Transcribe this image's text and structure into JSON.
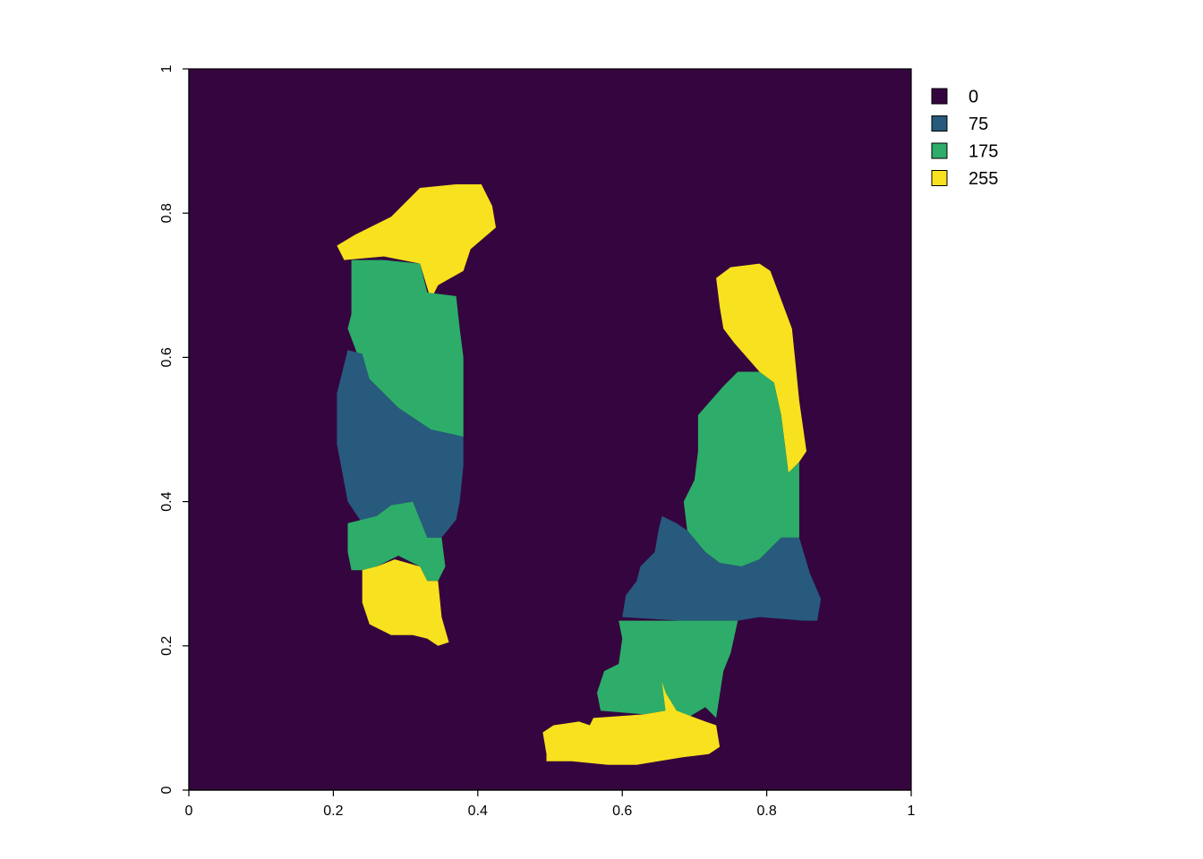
{
  "chart_data": {
    "type": "heatmap",
    "title": "",
    "xlabel": "",
    "ylabel": "",
    "xlim": [
      0,
      1
    ],
    "ylim": [
      0,
      1
    ],
    "x_ticks": [
      0,
      0.2,
      0.4,
      0.6,
      0.8,
      1
    ],
    "x_tick_labels": [
      "0",
      "0.2",
      "0.4",
      "0.6",
      "0.8",
      "1"
    ],
    "y_ticks": [
      0,
      0.2,
      0.4,
      0.6,
      0.8,
      1
    ],
    "y_tick_labels": [
      "0",
      "0.2",
      "0.4",
      "0.6",
      "0.8",
      "1"
    ],
    "background_value": 0,
    "legend": [
      {
        "label": "0",
        "value": 0,
        "color": "#35053F"
      },
      {
        "label": "75",
        "value": 75,
        "color": "#275A7D"
      },
      {
        "label": "175",
        "value": 175,
        "color": "#2DAD69"
      },
      {
        "label": "255",
        "value": 255,
        "color": "#F8E11E"
      }
    ],
    "regions": [
      {
        "name": "left-top-yellow",
        "value": 255,
        "points": [
          [
            0.205,
            0.755
          ],
          [
            0.23,
            0.77
          ],
          [
            0.28,
            0.795
          ],
          [
            0.32,
            0.835
          ],
          [
            0.37,
            0.84
          ],
          [
            0.405,
            0.84
          ],
          [
            0.42,
            0.81
          ],
          [
            0.425,
            0.78
          ],
          [
            0.39,
            0.75
          ],
          [
            0.38,
            0.72
          ],
          [
            0.345,
            0.7
          ],
          [
            0.335,
            0.68
          ],
          [
            0.32,
            0.73
          ],
          [
            0.27,
            0.74
          ],
          [
            0.215,
            0.735
          ]
        ]
      },
      {
        "name": "left-upper-green",
        "value": 175,
        "points": [
          [
            0.225,
            0.735
          ],
          [
            0.27,
            0.735
          ],
          [
            0.32,
            0.73
          ],
          [
            0.33,
            0.69
          ],
          [
            0.37,
            0.685
          ],
          [
            0.375,
            0.64
          ],
          [
            0.38,
            0.6
          ],
          [
            0.38,
            0.49
          ],
          [
            0.335,
            0.5
          ],
          [
            0.29,
            0.53
          ],
          [
            0.25,
            0.57
          ],
          [
            0.235,
            0.6
          ],
          [
            0.22,
            0.64
          ],
          [
            0.225,
            0.66
          ]
        ]
      },
      {
        "name": "left-blue",
        "value": 75,
        "points": [
          [
            0.22,
            0.61
          ],
          [
            0.24,
            0.605
          ],
          [
            0.25,
            0.57
          ],
          [
            0.29,
            0.53
          ],
          [
            0.335,
            0.5
          ],
          [
            0.38,
            0.49
          ],
          [
            0.38,
            0.45
          ],
          [
            0.375,
            0.4
          ],
          [
            0.37,
            0.375
          ],
          [
            0.35,
            0.35
          ],
          [
            0.33,
            0.35
          ],
          [
            0.31,
            0.4
          ],
          [
            0.28,
            0.395
          ],
          [
            0.26,
            0.38
          ],
          [
            0.24,
            0.37
          ],
          [
            0.22,
            0.4
          ],
          [
            0.205,
            0.48
          ],
          [
            0.205,
            0.55
          ]
        ]
      },
      {
        "name": "left-lower-green",
        "value": 175,
        "points": [
          [
            0.22,
            0.37
          ],
          [
            0.26,
            0.38
          ],
          [
            0.28,
            0.395
          ],
          [
            0.31,
            0.4
          ],
          [
            0.33,
            0.35
          ],
          [
            0.35,
            0.35
          ],
          [
            0.355,
            0.31
          ],
          [
            0.345,
            0.29
          ],
          [
            0.33,
            0.29
          ],
          [
            0.32,
            0.31
          ],
          [
            0.29,
            0.325
          ],
          [
            0.26,
            0.31
          ],
          [
            0.245,
            0.305
          ],
          [
            0.225,
            0.305
          ],
          [
            0.22,
            0.33
          ]
        ]
      },
      {
        "name": "left-bottom-yellow",
        "value": 255,
        "points": [
          [
            0.24,
            0.305
          ],
          [
            0.26,
            0.31
          ],
          [
            0.285,
            0.32
          ],
          [
            0.32,
            0.31
          ],
          [
            0.33,
            0.29
          ],
          [
            0.345,
            0.29
          ],
          [
            0.35,
            0.24
          ],
          [
            0.36,
            0.205
          ],
          [
            0.345,
            0.2
          ],
          [
            0.33,
            0.21
          ],
          [
            0.31,
            0.215
          ],
          [
            0.28,
            0.215
          ],
          [
            0.25,
            0.23
          ],
          [
            0.24,
            0.26
          ]
        ]
      },
      {
        "name": "right-top-yellow",
        "value": 255,
        "points": [
          [
            0.73,
            0.71
          ],
          [
            0.75,
            0.725
          ],
          [
            0.79,
            0.73
          ],
          [
            0.805,
            0.72
          ],
          [
            0.82,
            0.68
          ],
          [
            0.835,
            0.64
          ],
          [
            0.84,
            0.59
          ],
          [
            0.845,
            0.54
          ],
          [
            0.855,
            0.47
          ],
          [
            0.845,
            0.455
          ],
          [
            0.83,
            0.44
          ],
          [
            0.825,
            0.48
          ],
          [
            0.82,
            0.52
          ],
          [
            0.81,
            0.565
          ],
          [
            0.79,
            0.58
          ],
          [
            0.755,
            0.62
          ],
          [
            0.74,
            0.64
          ],
          [
            0.735,
            0.67
          ]
        ]
      },
      {
        "name": "right-upper-green",
        "value": 175,
        "points": [
          [
            0.705,
            0.52
          ],
          [
            0.74,
            0.56
          ],
          [
            0.76,
            0.58
          ],
          [
            0.79,
            0.58
          ],
          [
            0.81,
            0.565
          ],
          [
            0.82,
            0.52
          ],
          [
            0.825,
            0.48
          ],
          [
            0.83,
            0.44
          ],
          [
            0.845,
            0.455
          ],
          [
            0.845,
            0.35
          ],
          [
            0.82,
            0.35
          ],
          [
            0.79,
            0.32
          ],
          [
            0.765,
            0.31
          ],
          [
            0.735,
            0.315
          ],
          [
            0.715,
            0.33
          ],
          [
            0.69,
            0.36
          ],
          [
            0.685,
            0.4
          ],
          [
            0.7,
            0.43
          ],
          [
            0.705,
            0.47
          ]
        ]
      },
      {
        "name": "right-blue",
        "value": 75,
        "points": [
          [
            0.655,
            0.38
          ],
          [
            0.675,
            0.37
          ],
          [
            0.69,
            0.36
          ],
          [
            0.715,
            0.33
          ],
          [
            0.735,
            0.315
          ],
          [
            0.765,
            0.31
          ],
          [
            0.79,
            0.32
          ],
          [
            0.82,
            0.35
          ],
          [
            0.845,
            0.35
          ],
          [
            0.86,
            0.3
          ],
          [
            0.875,
            0.265
          ],
          [
            0.87,
            0.235
          ],
          [
            0.85,
            0.235
          ],
          [
            0.79,
            0.24
          ],
          [
            0.76,
            0.235
          ],
          [
            0.72,
            0.235
          ],
          [
            0.68,
            0.235
          ],
          [
            0.6,
            0.24
          ],
          [
            0.605,
            0.27
          ],
          [
            0.62,
            0.29
          ],
          [
            0.625,
            0.31
          ],
          [
            0.645,
            0.33
          ],
          [
            0.65,
            0.36
          ]
        ]
      },
      {
        "name": "right-lower-green",
        "value": 175,
        "points": [
          [
            0.595,
            0.235
          ],
          [
            0.64,
            0.235
          ],
          [
            0.7,
            0.235
          ],
          [
            0.75,
            0.235
          ],
          [
            0.76,
            0.235
          ],
          [
            0.75,
            0.19
          ],
          [
            0.74,
            0.165
          ],
          [
            0.73,
            0.1
          ],
          [
            0.715,
            0.115
          ],
          [
            0.69,
            0.1
          ],
          [
            0.66,
            0.11
          ],
          [
            0.63,
            0.105
          ],
          [
            0.57,
            0.11
          ],
          [
            0.565,
            0.135
          ],
          [
            0.575,
            0.165
          ],
          [
            0.595,
            0.175
          ],
          [
            0.6,
            0.21
          ]
        ]
      },
      {
        "name": "right-bottom-yellow",
        "value": 255,
        "points": [
          [
            0.495,
            0.05
          ],
          [
            0.49,
            0.08
          ],
          [
            0.505,
            0.09
          ],
          [
            0.54,
            0.095
          ],
          [
            0.555,
            0.09
          ],
          [
            0.56,
            0.1
          ],
          [
            0.63,
            0.105
          ],
          [
            0.66,
            0.11
          ],
          [
            0.655,
            0.15
          ],
          [
            0.66,
            0.135
          ],
          [
            0.675,
            0.11
          ],
          [
            0.715,
            0.095
          ],
          [
            0.73,
            0.09
          ],
          [
            0.735,
            0.06
          ],
          [
            0.72,
            0.05
          ],
          [
            0.68,
            0.045
          ],
          [
            0.62,
            0.035
          ],
          [
            0.58,
            0.035
          ],
          [
            0.53,
            0.04
          ],
          [
            0.495,
            0.04
          ]
        ]
      }
    ]
  }
}
